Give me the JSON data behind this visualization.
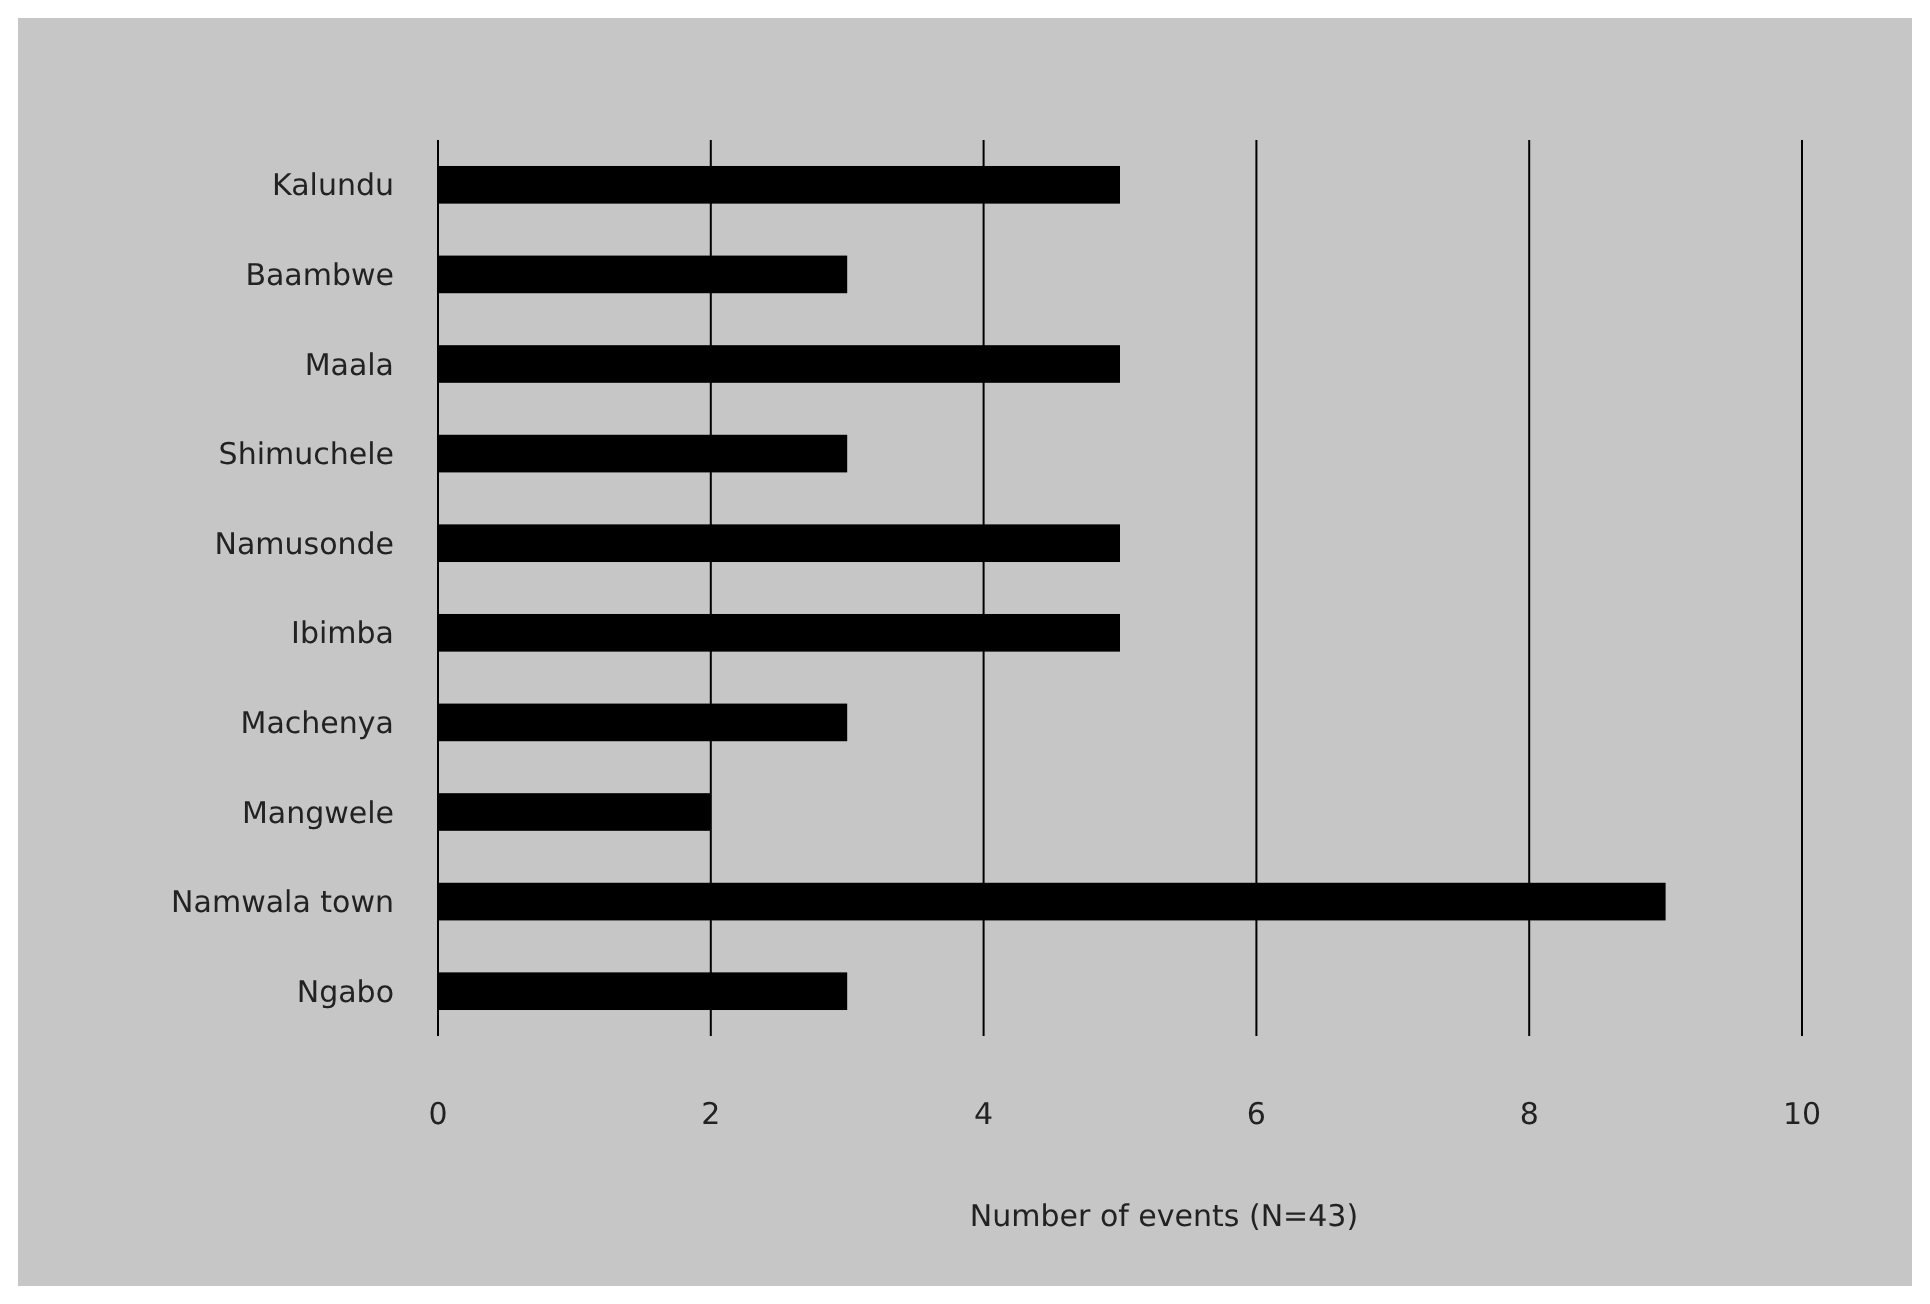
{
  "chart_data": {
    "type": "bar",
    "orientation": "horizontal",
    "xlabel": "Number of events (N=43)",
    "categories": [
      "Kalundu",
      "Baambwe",
      "Maala",
      "Shimuchele",
      "Namusonde",
      "Ibimba",
      "Machenya",
      "Mangwele",
      "Namwala town",
      "Ngabo"
    ],
    "values": [
      5,
      3,
      5,
      3,
      5,
      5,
      3,
      2,
      9,
      3
    ],
    "color": "#000000",
    "xlim": [
      0,
      10
    ],
    "xticks": [
      0,
      2,
      4,
      6,
      8,
      10
    ],
    "grid": "x"
  }
}
